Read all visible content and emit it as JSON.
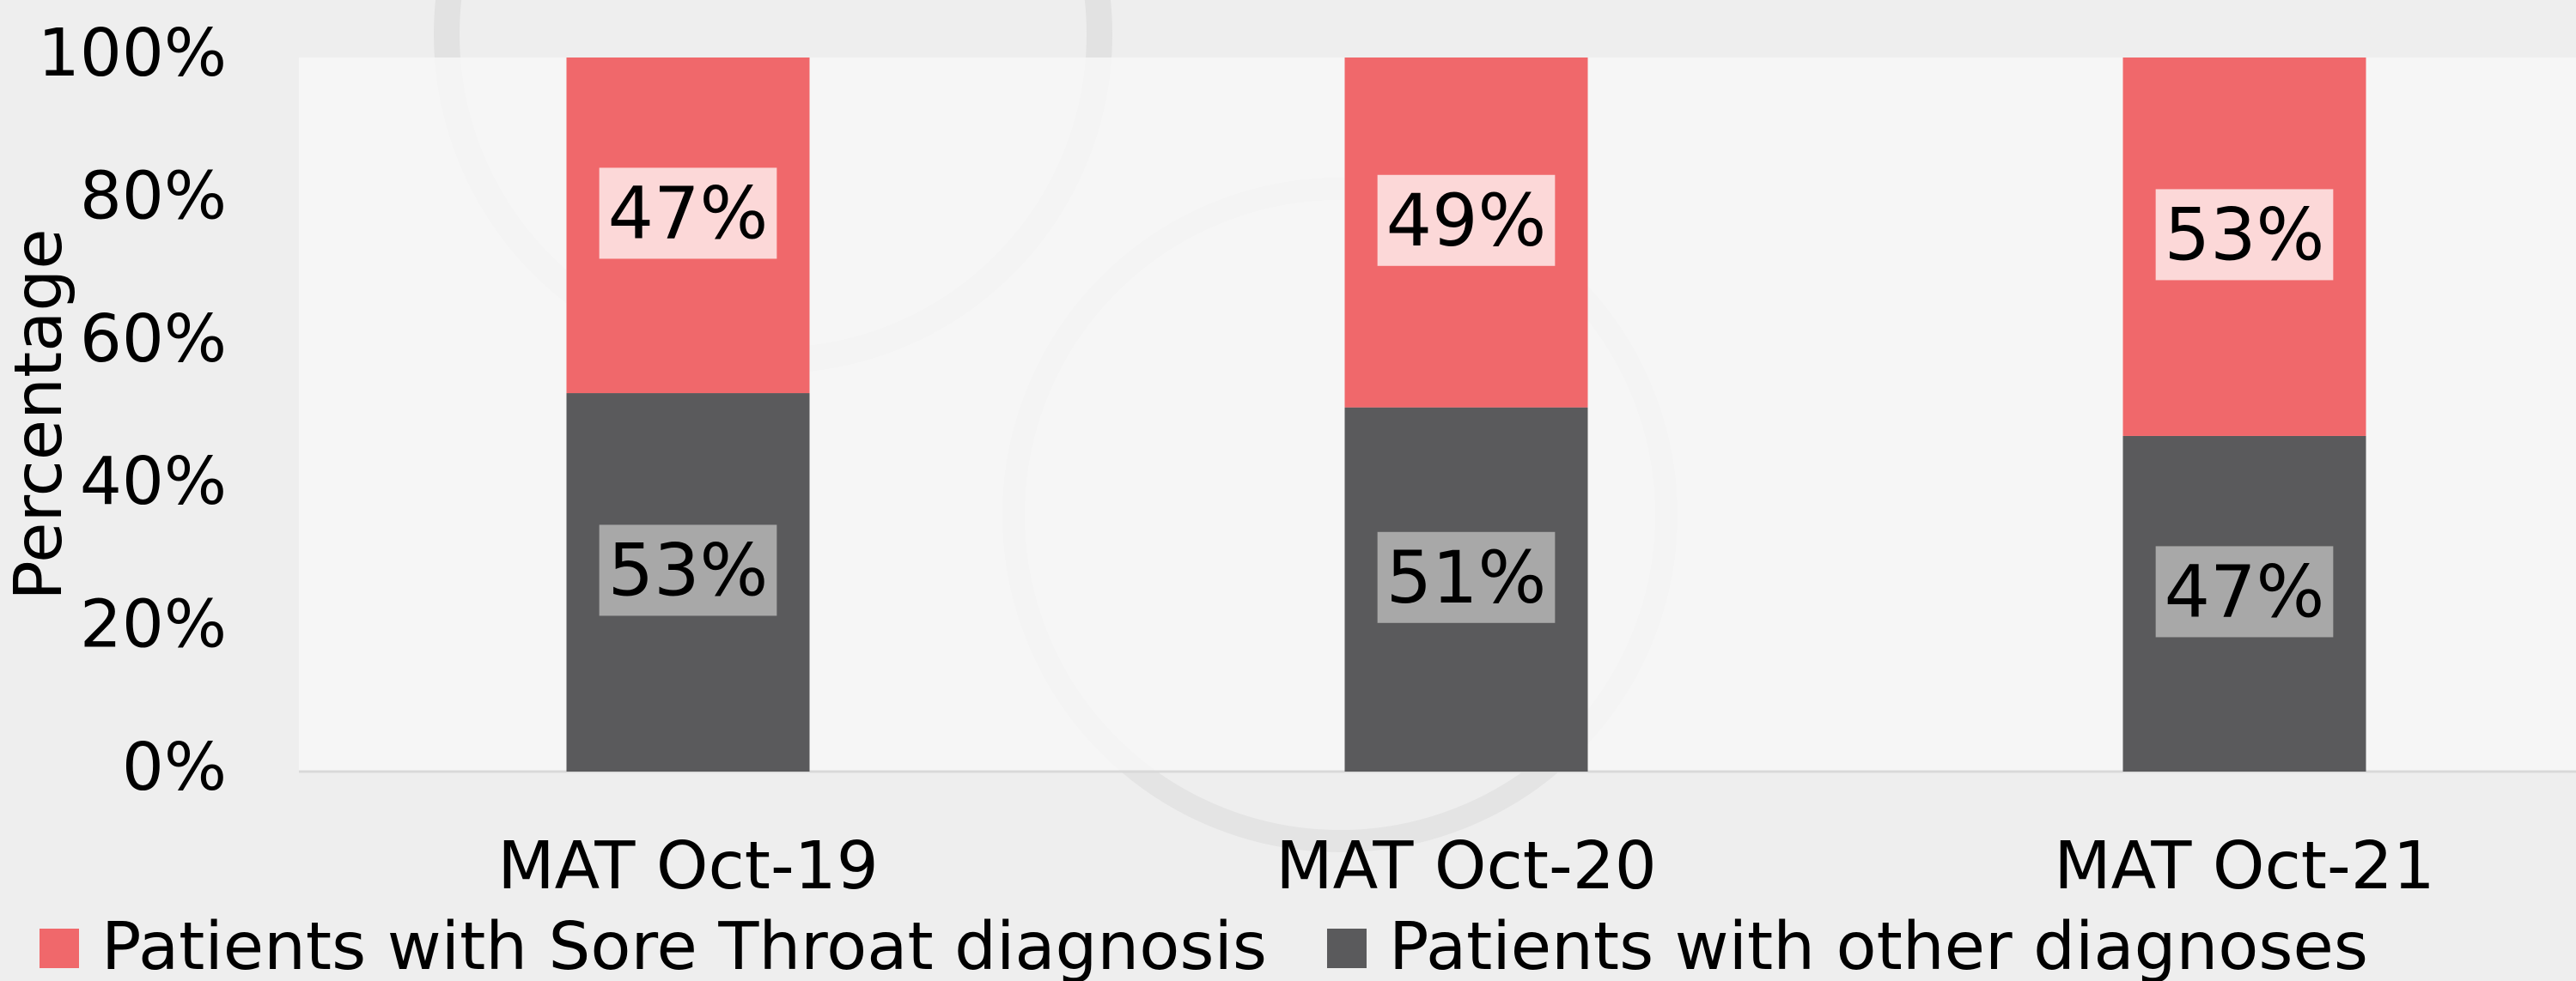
{
  "chart_data": {
    "type": "stacked_bar",
    "y_label": "Percentage",
    "categories": [
      "MAT Oct-19",
      "MAT Oct-20",
      "MAT Oct-21"
    ],
    "series": [
      {
        "name": "Patients with Sore Throat diagnosis",
        "color": "#f0686b",
        "label_bg": "#fcd8d8",
        "values": [
          47,
          49,
          53
        ],
        "value_labels": [
          "47%",
          "49%",
          "53%"
        ]
      },
      {
        "name": "Patients with other diagnoses",
        "color": "#5a5a5c",
        "label_bg": "#a8a8a8",
        "values": [
          53,
          51,
          47
        ],
        "value_labels": [
          "53%",
          "51%",
          "47%"
        ]
      }
    ],
    "ylim": [
      0,
      100
    ],
    "yticks": [
      {
        "value": 0,
        "label": "0%"
      },
      {
        "value": 20,
        "label": "20%"
      },
      {
        "value": 40,
        "label": "40%"
      },
      {
        "value": 60,
        "label": "60%"
      },
      {
        "value": 80,
        "label": "80%"
      },
      {
        "value": 100,
        "label": "100%"
      }
    ],
    "legend": "bottom"
  }
}
